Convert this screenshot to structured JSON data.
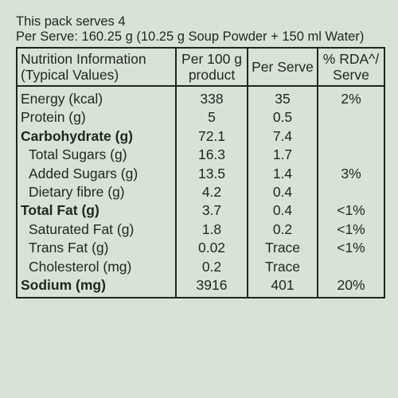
{
  "header": {
    "serves_line": "This pack serves 4",
    "per_serve_line": "Per Serve: 160.25 g (10.25 g Soup Powder + 150 ml Water)"
  },
  "table": {
    "columns": [
      {
        "line1": "Nutrition Information",
        "line2": "(Typical Values)"
      },
      {
        "line1": "Per 100 g",
        "line2": "product"
      },
      {
        "line1": "Per Serve",
        "line2": ""
      },
      {
        "line1": "% RDA^/",
        "line2": "Serve"
      }
    ],
    "rows": [
      {
        "name": "Energy (kcal)",
        "per100": "338",
        "perserve": "35",
        "rda": "2%",
        "bold": false,
        "indent": false
      },
      {
        "name": "Protein (g)",
        "per100": "5",
        "perserve": "0.5",
        "rda": "",
        "bold": false,
        "indent": false
      },
      {
        "name": "Carbohydrate (g)",
        "per100": "72.1",
        "perserve": "7.4",
        "rda": "",
        "bold": true,
        "indent": false
      },
      {
        "name": "Total Sugars (g)",
        "per100": "16.3",
        "perserve": "1.7",
        "rda": "",
        "bold": false,
        "indent": true
      },
      {
        "name": "Added Sugars (g)",
        "per100": "13.5",
        "perserve": "1.4",
        "rda": "3%",
        "bold": false,
        "indent": true
      },
      {
        "name": "Dietary fibre (g)",
        "per100": "4.2",
        "perserve": "0.4",
        "rda": "",
        "bold": false,
        "indent": true
      },
      {
        "name": "Total Fat (g)",
        "per100": "3.7",
        "perserve": "0.4",
        "rda": "<1%",
        "bold": true,
        "indent": false
      },
      {
        "name": "Saturated Fat (g)",
        "per100": "1.8",
        "perserve": "0.2",
        "rda": "<1%",
        "bold": false,
        "indent": true
      },
      {
        "name": "Trans Fat (g)",
        "per100": "0.02",
        "perserve": "Trace",
        "rda": "<1%",
        "bold": false,
        "indent": true
      },
      {
        "name": "Cholesterol (mg)",
        "per100": "0.2",
        "perserve": "Trace",
        "rda": "",
        "bold": false,
        "indent": true
      },
      {
        "name": "Sodium (mg)",
        "per100": "3916",
        "perserve": "401",
        "rda": "20%",
        "bold": true,
        "indent": false
      }
    ]
  }
}
